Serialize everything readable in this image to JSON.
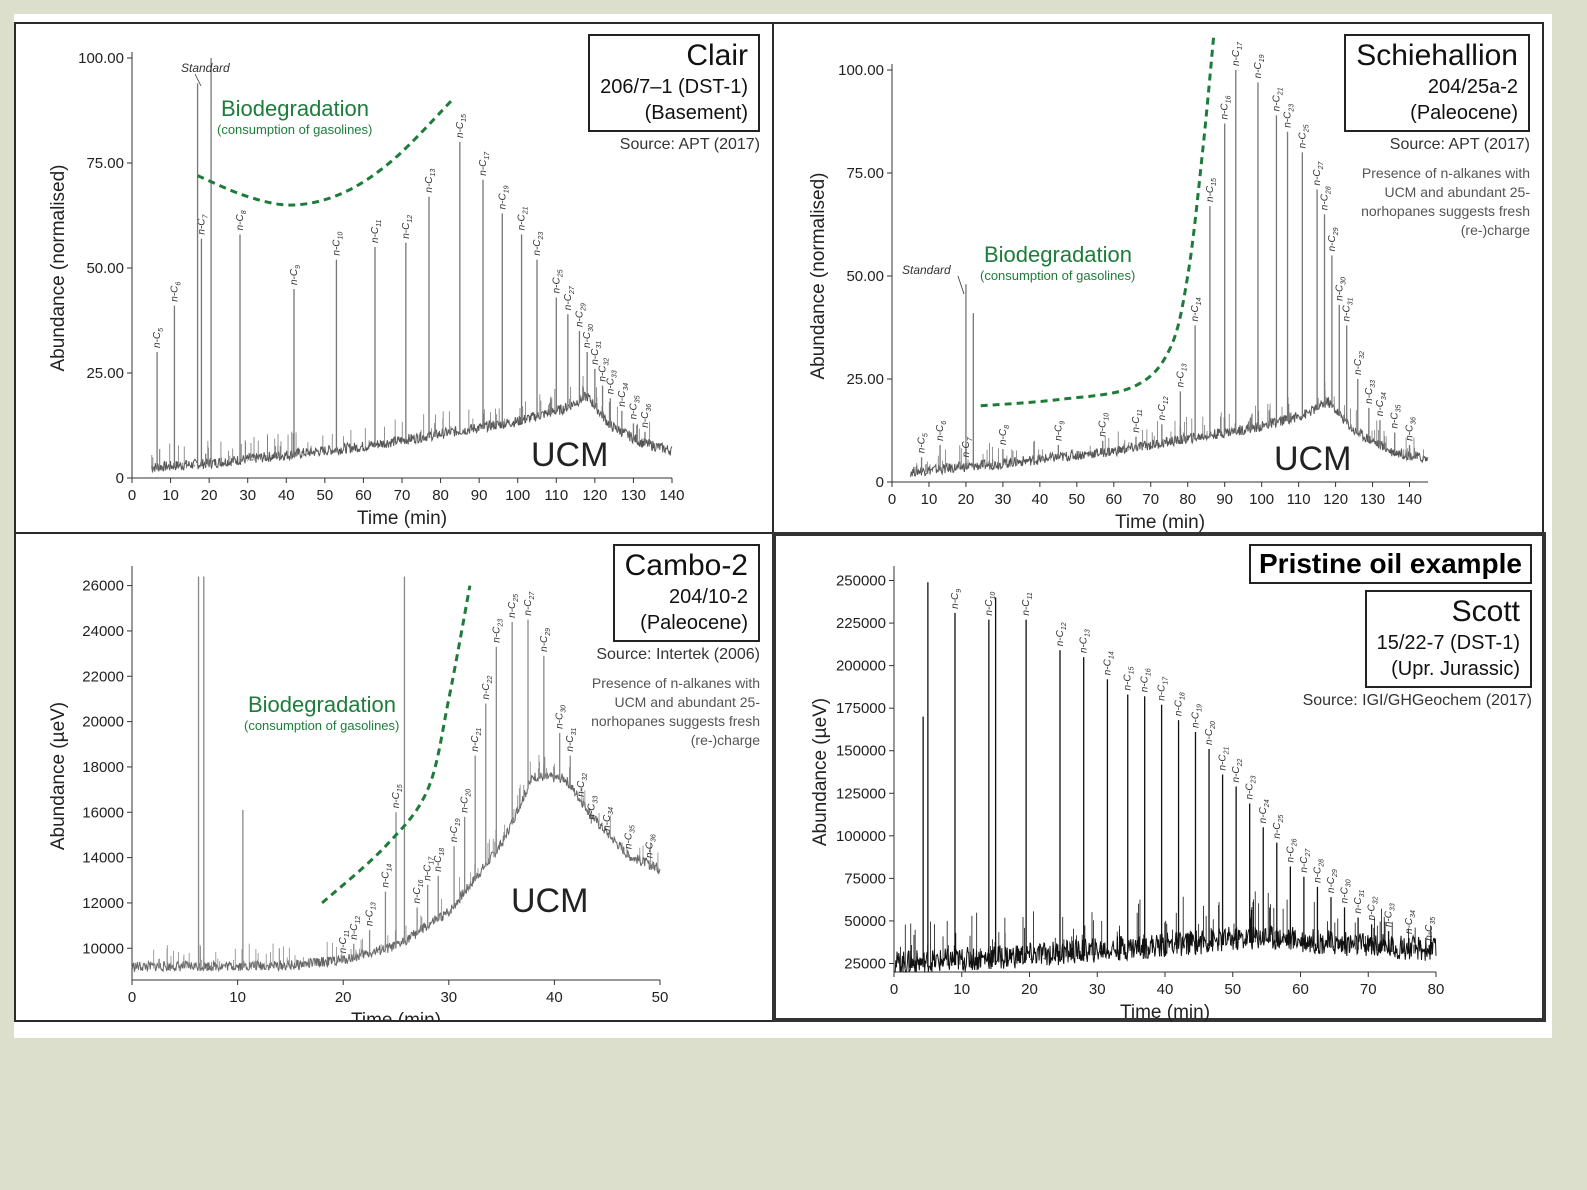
{
  "panels": [
    {
      "id": "clair",
      "box_title": "Clair",
      "box_lines": [
        "206/7–1 (DST-1)",
        "(Basement)"
      ],
      "source": "Source: APT (2017)",
      "note": "",
      "header": "",
      "biodeg_title": "Biodegradation",
      "biodeg_sub": "(consumption of gasolines)",
      "ucm": "UCM",
      "standard": "Standard"
    },
    {
      "id": "schiehallion",
      "box_title": "Schiehallion",
      "box_lines": [
        "204/25a-2",
        "(Paleocene)"
      ],
      "source": "Source: APT (2017)",
      "note": "Presence of n-alkanes with UCM and abundant 25-norhopanes suggests fresh (re-)charge",
      "header": "",
      "biodeg_title": "Biodegradation",
      "biodeg_sub": "(consumption of gasolines)",
      "ucm": "UCM",
      "standard": "Standard"
    },
    {
      "id": "cambo",
      "box_title": "Cambo-2",
      "box_lines": [
        "204/10-2",
        "(Paleocene)"
      ],
      "source": "Source: Intertek (2006)",
      "note": "Presence of n-alkanes with UCM and abundant 25-norhopanes suggests fresh (re-)charge",
      "header": "",
      "biodeg_title": "Biodegradation",
      "biodeg_sub": "(consumption of gasolines)",
      "ucm": "UCM",
      "standard": ""
    },
    {
      "id": "scott",
      "box_title": "Scott",
      "box_lines": [
        "15/22-7 (DST-1)",
        "(Upr. Jurassic)"
      ],
      "source": "Source: IGI/GHGeochem (2017)",
      "note": "",
      "header": "Pristine oil example",
      "biodeg_title": "",
      "biodeg_sub": "",
      "ucm": "",
      "standard": ""
    }
  ],
  "chart_data": [
    {
      "type": "line",
      "title": "Clair",
      "xlabel": "Time (min)",
      "ylabel": "Abundance (normalised)",
      "xlim": [
        0,
        140
      ],
      "ylim": [
        0,
        100
      ],
      "xticks": [
        0,
        10,
        20,
        30,
        40,
        50,
        60,
        70,
        80,
        90,
        100,
        110,
        120,
        130,
        140
      ],
      "yticks": [
        0,
        25,
        50,
        75,
        100
      ],
      "ytick_labels": [
        "0",
        "25.00",
        "50.00",
        "75.00",
        "100.00"
      ],
      "baseline": [
        [
          5,
          2
        ],
        [
          20,
          3
        ],
        [
          40,
          5
        ],
        [
          60,
          7
        ],
        [
          80,
          10
        ],
        [
          100,
          13
        ],
        [
          112,
          16
        ],
        [
          118,
          19
        ],
        [
          124,
          12
        ],
        [
          132,
          8
        ],
        [
          140,
          6
        ]
      ],
      "peaks": [
        {
          "x": 6.5,
          "y": 30,
          "label": "n-C5"
        },
        {
          "x": 11,
          "y": 41,
          "label": "n-C6"
        },
        {
          "x": 18,
          "y": 57,
          "label": "n-C7"
        },
        {
          "x": 20.5,
          "y": 100,
          "label": ""
        },
        {
          "x": 17,
          "y": 94,
          "label": ""
        },
        {
          "x": 28,
          "y": 58,
          "label": "n-C8"
        },
        {
          "x": 42,
          "y": 45,
          "label": "n-C9"
        },
        {
          "x": 53,
          "y": 52,
          "label": "n-C10"
        },
        {
          "x": 63,
          "y": 55,
          "label": "n-C11"
        },
        {
          "x": 71,
          "y": 56,
          "label": "n-C12"
        },
        {
          "x": 77,
          "y": 67,
          "label": "n-C13"
        },
        {
          "x": 85,
          "y": 80,
          "label": "n-C15"
        },
        {
          "x": 91,
          "y": 71,
          "label": "n-C17"
        },
        {
          "x": 96,
          "y": 63,
          "label": "n-C19"
        },
        {
          "x": 101,
          "y": 58,
          "label": "n-C21"
        },
        {
          "x": 105,
          "y": 52,
          "label": "n-C23"
        },
        {
          "x": 110,
          "y": 43,
          "label": "n-C25"
        },
        {
          "x": 113,
          "y": 39,
          "label": "n-C27"
        },
        {
          "x": 116,
          "y": 35,
          "label": "n-C29"
        },
        {
          "x": 118,
          "y": 30,
          "label": "n-C30"
        },
        {
          "x": 120,
          "y": 26,
          "label": "n-C31"
        },
        {
          "x": 122,
          "y": 22,
          "label": "n-C32"
        },
        {
          "x": 124,
          "y": 19,
          "label": "n-C33"
        },
        {
          "x": 127,
          "y": 16,
          "label": "n-C34"
        },
        {
          "x": 130,
          "y": 13,
          "label": "n-C35"
        },
        {
          "x": 133,
          "y": 11,
          "label": "n-C36"
        }
      ],
      "biodeg_curve": [
        [
          17,
          72
        ],
        [
          30,
          67
        ],
        [
          42,
          65
        ],
        [
          55,
          68
        ],
        [
          68,
          76
        ],
        [
          83,
          90
        ]
      ]
    },
    {
      "type": "line",
      "title": "Schiehallion",
      "xlabel": "Time (min)",
      "ylabel": "Abundance (normalised)",
      "xlim": [
        0,
        145
      ],
      "ylim": [
        0,
        100
      ],
      "xticks": [
        0,
        10,
        20,
        30,
        40,
        50,
        60,
        70,
        80,
        90,
        100,
        110,
        120,
        130,
        140
      ],
      "yticks": [
        0,
        25,
        50,
        75,
        100
      ],
      "ytick_labels": [
        "0",
        "25.00",
        "50.00",
        "75.00",
        "100.00"
      ],
      "baseline": [
        [
          5,
          2
        ],
        [
          30,
          4
        ],
        [
          60,
          7
        ],
        [
          80,
          10
        ],
        [
          100,
          13
        ],
        [
          112,
          16
        ],
        [
          118,
          19
        ],
        [
          125,
          12
        ],
        [
          135,
          7
        ],
        [
          145,
          5
        ]
      ],
      "peaks": [
        {
          "x": 8,
          "y": 6,
          "label": "n-C5"
        },
        {
          "x": 13,
          "y": 9,
          "label": "n-C6"
        },
        {
          "x": 20,
          "y": 48,
          "label": ""
        },
        {
          "x": 22,
          "y": 41,
          "label": ""
        },
        {
          "x": 20,
          "y": 5,
          "label": "n-C7"
        },
        {
          "x": 30,
          "y": 8,
          "label": "n-C8"
        },
        {
          "x": 45,
          "y": 9,
          "label": "n-C9"
        },
        {
          "x": 57,
          "y": 10,
          "label": "n-C10"
        },
        {
          "x": 66,
          "y": 11,
          "label": "n-C11"
        },
        {
          "x": 73,
          "y": 14,
          "label": "n-C12"
        },
        {
          "x": 78,
          "y": 22,
          "label": "n-C13"
        },
        {
          "x": 82,
          "y": 38,
          "label": "n-C14"
        },
        {
          "x": 86,
          "y": 67,
          "label": "n-C15"
        },
        {
          "x": 90,
          "y": 87,
          "label": "n-C16"
        },
        {
          "x": 93,
          "y": 100,
          "label": "n-C17"
        },
        {
          "x": 99,
          "y": 97,
          "label": "n-C19"
        },
        {
          "x": 104,
          "y": 89,
          "label": "n-C21"
        },
        {
          "x": 107,
          "y": 85,
          "label": "n-C23"
        },
        {
          "x": 111,
          "y": 80,
          "label": "n-C25"
        },
        {
          "x": 115,
          "y": 71,
          "label": "n-C27"
        },
        {
          "x": 117,
          "y": 65,
          "label": "n-C28"
        },
        {
          "x": 119,
          "y": 55,
          "label": "n-C29"
        },
        {
          "x": 121,
          "y": 43,
          "label": "n-C30"
        },
        {
          "x": 123,
          "y": 38,
          "label": "n-C31"
        },
        {
          "x": 126,
          "y": 25,
          "label": "n-C32"
        },
        {
          "x": 129,
          "y": 18,
          "label": "n-C33"
        },
        {
          "x": 132,
          "y": 15,
          "label": "n-C34"
        },
        {
          "x": 136,
          "y": 12,
          "label": "n-C35"
        },
        {
          "x": 140,
          "y": 9,
          "label": "n-C36"
        }
      ],
      "biodeg_curve": [
        [
          24,
          18.5
        ],
        [
          45,
          20
        ],
        [
          65,
          23
        ],
        [
          75,
          32
        ],
        [
          80,
          50
        ],
        [
          84,
          80
        ],
        [
          87,
          108
        ]
      ]
    },
    {
      "type": "line",
      "title": "Cambo-2",
      "xlabel": "Time (min)",
      "ylabel": "Abundance (µeV)",
      "xlim": [
        0,
        50
      ],
      "ylim": [
        8600,
        26600
      ],
      "xticks": [
        0,
        10,
        20,
        30,
        40,
        50
      ],
      "yticks": [
        10000,
        12000,
        14000,
        16000,
        18000,
        20000,
        22000,
        24000,
        26000
      ],
      "ytick_labels": [
        "10000",
        "12000",
        "14000",
        "16000",
        "18000",
        "20000",
        "22000",
        "24000",
        "26000"
      ],
      "baseline": [
        [
          0,
          9100
        ],
        [
          15,
          9150
        ],
        [
          20,
          9400
        ],
        [
          25,
          10000
        ],
        [
          30,
          11500
        ],
        [
          35,
          14500
        ],
        [
          38,
          17500
        ],
        [
          41,
          17400
        ],
        [
          44,
          15500
        ],
        [
          47,
          14000
        ],
        [
          50,
          13400
        ]
      ],
      "peaks": [
        {
          "x": 6.3,
          "y": 26400,
          "label": ""
        },
        {
          "x": 6.8,
          "y": 26400,
          "label": ""
        },
        {
          "x": 10.5,
          "y": 16100,
          "label": ""
        },
        {
          "x": 25.8,
          "y": 26400,
          "label": ""
        },
        {
          "x": 20,
          "y": 9600,
          "label": "n-C11"
        },
        {
          "x": 21,
          "y": 10200,
          "label": "n-C12"
        },
        {
          "x": 22.5,
          "y": 10800,
          "label": "n-C13"
        },
        {
          "x": 24,
          "y": 12500,
          "label": "n-C14"
        },
        {
          "x": 25,
          "y": 16000,
          "label": "n-C15"
        },
        {
          "x": 27,
          "y": 11800,
          "label": "n-C16"
        },
        {
          "x": 28,
          "y": 12800,
          "label": "n-C17"
        },
        {
          "x": 29,
          "y": 13200,
          "label": "n-C18"
        },
        {
          "x": 30.5,
          "y": 14500,
          "label": "n-C19"
        },
        {
          "x": 31.5,
          "y": 15800,
          "label": "n-C20"
        },
        {
          "x": 32.5,
          "y": 18500,
          "label": "n-C21"
        },
        {
          "x": 33.5,
          "y": 20800,
          "label": "n-C22"
        },
        {
          "x": 34.5,
          "y": 23300,
          "label": "n-C23"
        },
        {
          "x": 36,
          "y": 24400,
          "label": "n-C25"
        },
        {
          "x": 37.5,
          "y": 24500,
          "label": "n-C27"
        },
        {
          "x": 39,
          "y": 22900,
          "label": "n-C29"
        },
        {
          "x": 40.5,
          "y": 19500,
          "label": "n-C30"
        },
        {
          "x": 41.5,
          "y": 18500,
          "label": "n-C31"
        },
        {
          "x": 42.5,
          "y": 16500,
          "label": "n-C32"
        },
        {
          "x": 43.5,
          "y": 15500,
          "label": "n-C33"
        },
        {
          "x": 45,
          "y": 15000,
          "label": "n-C34"
        },
        {
          "x": 47,
          "y": 14200,
          "label": "n-C35"
        },
        {
          "x": 49,
          "y": 13800,
          "label": "n-C36"
        }
      ],
      "biodeg_curve": [
        [
          18,
          12000
        ],
        [
          24,
          14500
        ],
        [
          28,
          17000
        ],
        [
          30,
          21000
        ],
        [
          32,
          26000
        ]
      ]
    },
    {
      "type": "line",
      "title": "Scott",
      "xlabel": "Time (min)",
      "ylabel": "Abundance (µeV)",
      "xlim": [
        0,
        80
      ],
      "ylim": [
        20000,
        255000
      ],
      "xticks": [
        0,
        10,
        20,
        30,
        40,
        50,
        60,
        70,
        80
      ],
      "yticks": [
        25000,
        50000,
        75000,
        100000,
        125000,
        150000,
        175000,
        200000,
        225000,
        250000
      ],
      "ytick_labels": [
        "25000",
        "50000",
        "75000",
        "100000",
        "125000",
        "150000",
        "175000",
        "200000",
        "225000",
        "250000"
      ],
      "baseline": [
        [
          0,
          22000
        ],
        [
          5,
          23000
        ],
        [
          20,
          27000
        ],
        [
          40,
          33000
        ],
        [
          55,
          38000
        ],
        [
          65,
          34000
        ],
        [
          80,
          30000
        ]
      ],
      "peaks": [
        {
          "x": 5.0,
          "y": 249000,
          "label": ""
        },
        {
          "x": 4.3,
          "y": 170000,
          "label": ""
        },
        {
          "x": 9.0,
          "y": 231000,
          "label": "n-C9"
        },
        {
          "x": 14.0,
          "y": 227000,
          "label": "n-C10"
        },
        {
          "x": 15.0,
          "y": 240000,
          "label": ""
        },
        {
          "x": 19.5,
          "y": 227000,
          "label": "n-C11"
        },
        {
          "x": 24.5,
          "y": 209000,
          "label": "n-C12"
        },
        {
          "x": 28.0,
          "y": 205000,
          "label": "n-C13"
        },
        {
          "x": 31.5,
          "y": 192000,
          "label": "n-C14"
        },
        {
          "x": 34.5,
          "y": 183000,
          "label": "n-C15"
        },
        {
          "x": 37.0,
          "y": 182000,
          "label": "n-C16"
        },
        {
          "x": 39.5,
          "y": 177000,
          "label": "n-C17"
        },
        {
          "x": 42.0,
          "y": 168000,
          "label": "n-C18"
        },
        {
          "x": 44.5,
          "y": 161000,
          "label": "n-C19"
        },
        {
          "x": 46.5,
          "y": 151000,
          "label": "n-C20"
        },
        {
          "x": 48.5,
          "y": 136000,
          "label": "n-C21"
        },
        {
          "x": 50.5,
          "y": 129000,
          "label": "n-C22"
        },
        {
          "x": 52.5,
          "y": 119000,
          "label": "n-C23"
        },
        {
          "x": 54.5,
          "y": 105000,
          "label": "n-C24"
        },
        {
          "x": 56.5,
          "y": 96000,
          "label": "n-C25"
        },
        {
          "x": 58.5,
          "y": 82000,
          "label": "n-C26"
        },
        {
          "x": 60.5,
          "y": 76000,
          "label": "n-C27"
        },
        {
          "x": 62.5,
          "y": 70000,
          "label": "n-C28"
        },
        {
          "x": 64.5,
          "y": 64000,
          "label": "n-C29"
        },
        {
          "x": 66.5,
          "y": 58000,
          "label": "n-C30"
        },
        {
          "x": 68.5,
          "y": 52000,
          "label": "n-C31"
        },
        {
          "x": 70.5,
          "y": 48000,
          "label": "n-C32"
        },
        {
          "x": 73.0,
          "y": 44000,
          "label": "n-C33"
        },
        {
          "x": 76.0,
          "y": 40000,
          "label": "n-C34"
        },
        {
          "x": 79.0,
          "y": 36000,
          "label": "n-C35"
        }
      ],
      "biodeg_curve": []
    }
  ]
}
